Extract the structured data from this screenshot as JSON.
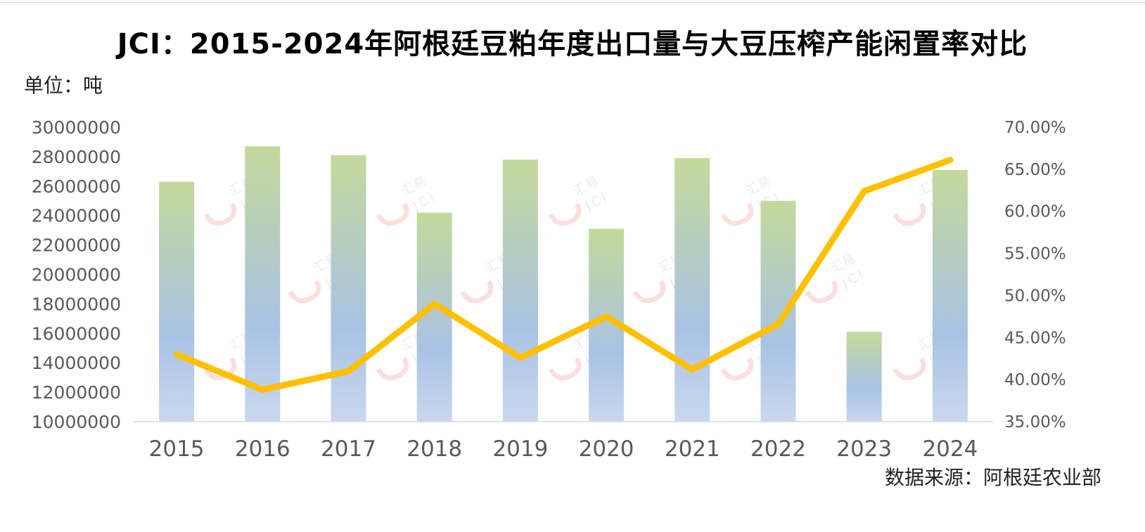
{
  "title": "JCI：2015-2024年阿根廷豆粕年度出口量与大豆压榨产能闲置率对比",
  "unit_label": "单位：吨",
  "source_label": "数据来源：阿根廷农业部",
  "watermark": {
    "brand": "汇易",
    "logo": "JCI"
  },
  "colors": {
    "bar_top": "#c4d99b",
    "bar_bottom": "#a9c2e4",
    "line": "#ffc000",
    "axis": "#d9d9d9",
    "tick": "#595959"
  },
  "chart_data": {
    "type": "bar+line",
    "categories": [
      "2015",
      "2016",
      "2017",
      "2018",
      "2019",
      "2020",
      "2021",
      "2022",
      "2023",
      "2024"
    ],
    "series": [
      {
        "type": "bar",
        "axis": "left",
        "values": [
          26300000,
          28700000,
          28100000,
          24200000,
          27800000,
          23100000,
          27900000,
          25000000,
          16100000,
          27100000
        ]
      },
      {
        "type": "line",
        "axis": "right",
        "values": [
          43.0,
          38.8,
          41.0,
          49.0,
          42.6,
          47.5,
          41.2,
          46.6,
          62.4,
          66.1
        ]
      }
    ],
    "y_left": {
      "min": 10000000,
      "max": 30000000,
      "step": 2000000,
      "ticks": [
        "10000000",
        "12000000",
        "14000000",
        "16000000",
        "18000000",
        "20000000",
        "22000000",
        "24000000",
        "26000000",
        "28000000",
        "30000000"
      ]
    },
    "y_right": {
      "min": 35,
      "max": 70,
      "step": 5,
      "ticks": [
        "35.00%",
        "40.00%",
        "45.00%",
        "50.00%",
        "55.00%",
        "60.00%",
        "65.00%",
        "70.00%"
      ]
    },
    "grid": false,
    "legend": "none"
  }
}
